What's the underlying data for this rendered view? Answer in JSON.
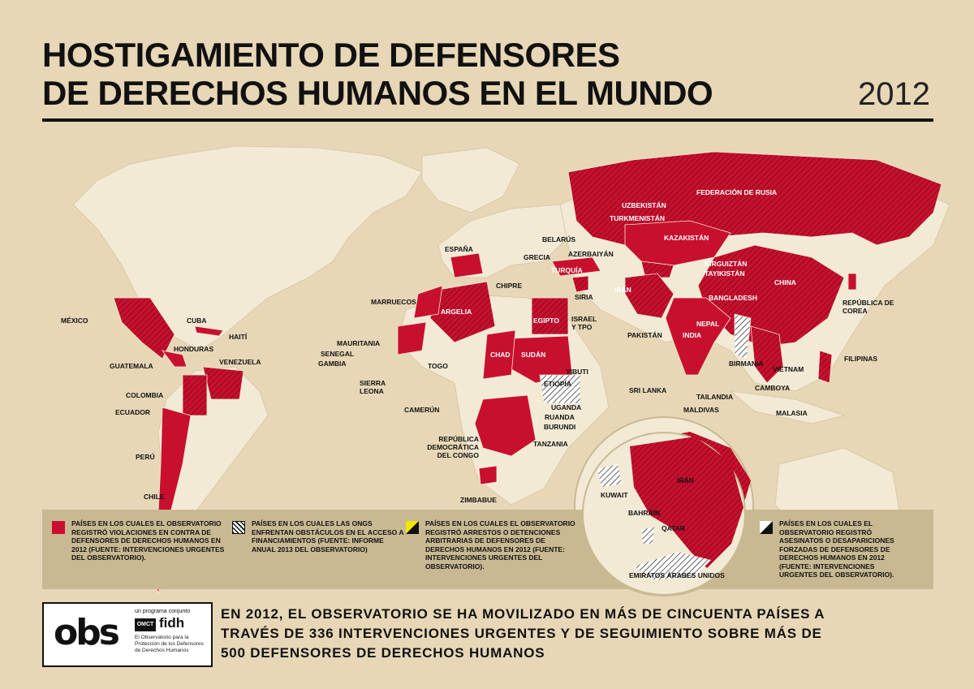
{
  "title_line1": "HOSTIGAMIENTO DE DEFENSORES",
  "title_line2": "DE DERECHOS HUMANOS EN EL MUNDO",
  "year": "2012",
  "colors": {
    "background": "#e7d7b6",
    "ocean": "#e7d7b6",
    "land": "#f3ead6",
    "highlight": "#c8102e",
    "hatch": "#111111",
    "marker_yellow": "#f2e600"
  },
  "country_labels": {
    "federacion_rusia": "FEDERACIÓN DE RUSIA",
    "uzbekistan": "UZBEKISTÁN",
    "turkmenistan": "TURKMENISTÁN",
    "kazakistan": "KAZAKISTÁN",
    "belarus": "BELARÚS",
    "azerbaiyan": "AZERBAIYÁN",
    "grecia": "GRECIA",
    "turquia": "TURQUÍA",
    "espana": "ESPAÑA",
    "kirguiztan": "KIRGUIZTÁN",
    "tayikistan": "TAYIKISTÁN",
    "china": "CHINA",
    "iran": "IRÁN",
    "chipre": "CHIPRE",
    "siria": "SIRIA",
    "bangladesh": "BANGLADESH",
    "republica_corea": "REPÚBLICA DE COREA",
    "marruecos": "MARRUECOS",
    "argelia": "ARGELIA",
    "israel": "ISRAEL Y TPO",
    "nepal": "NEPAL",
    "india": "INDIA",
    "pakistan": "PAKISTÁN",
    "egipto": "EGIPTO",
    "mexico": "MÉXICO",
    "cuba": "CUBA",
    "haiti": "HAITÍ",
    "mauritania": "MAURITANIA",
    "senegal": "SENEGAL",
    "gambia": "GAMBIA",
    "honduras": "HONDURAS",
    "guatemala": "GUATEMALA",
    "venezuela": "VENEZUELA",
    "chad": "CHAD",
    "sudan": "SUDÁN",
    "togo": "TOGO",
    "birmania": "BIRMANIA",
    "filipinas": "FILIPINAS",
    "vietnam": "VIETNAM",
    "yibuti": "YIBUTI",
    "sierra_leona": "SIERRA LEONA",
    "etiopia": "ETIOPÍA",
    "sri_lanka": "SRI LANKA",
    "camboya": "CAMBOYA",
    "tailandia": "TAILANDIA",
    "colombia": "COLOMBIA",
    "ecuador": "ECUADOR",
    "camerun": "CAMERÚN",
    "uganda": "UGANDA",
    "ruanda": "RUANDA",
    "burundi": "BURUNDI",
    "maldivas": "MALDIVAS",
    "malasia": "MALASIA",
    "rdc": "REPÚBLICA DEMOCRÁTICA DEL CONGO",
    "tanzania": "TANZANIA",
    "peru": "PERÚ",
    "chile": "CHILE",
    "zimbabue": "ZIMBABUE"
  },
  "inset_labels": {
    "iran": "IRÁN",
    "kuwait": "KUWAIT",
    "bahrain": "BAHRÁIN",
    "qatar": "QATAR",
    "emiratos": "EMIRATOS ÁRABES UNIDOS"
  },
  "legend": [
    {
      "icon": "red-square",
      "text": "PAÍSES EN LOS CUALES EL OBSERVATORIO REGISTRÓ VIOLACIONES EN CONTRA DE DEFENSORES DE DERECHOS HUMANOS EN 2012 (FUENTE: INTERVENCIONES URGENTES DEL OBSERVATORIO)."
    },
    {
      "icon": "hatched-square",
      "text": "PAÍSES EN LOS CUALES LAS ONGS ENFRENTAN OBSTÁCULOS EN EL ACCESO A FINANCIAMIENTOS (FUENTE: INFORME ANUAL 2013 DEL OBSERVATORIO)"
    },
    {
      "icon": "yellow-triangle",
      "text": "PAÍSES EN LOS CUALES EL OBSERVATORIO REGISTRÓ ARRESTOS O DETENCIONES ARBITRARIAS DE DEFENSORES DE DERECHOS HUMANOS EN 2012 (FUENTE: INTERVENCIONES URGENTES DEL OBSERVATORIO)."
    },
    {
      "icon": "black-triangle",
      "text": "PAÍSES EN LOS CUALES EL OBSERVATORIO REGISTRÓ ASESINATOS O DESAPARICIONES FORZADAS DE DEFENSORES DE DERECHOS HUMANOS EN 2012 (FUENTE: INTERVENCIONES URGENTES DEL OBSERVATORIO)."
    }
  ],
  "logo": {
    "obs": "obs",
    "program": "un programa conjunto",
    "omct": "OMCT",
    "fidh": "fidh",
    "description": "El Observatorio para la Protección de los Defensores de Derechos Humanos"
  },
  "footer": "EN 2012, EL OBSERVATORIO SE HA MOVILIZADO EN MÁS DE CINCUENTA PAÍSES A TRAVÉS DE 336 INTERVENCIONES URGENTES Y DE SEGUIMIENTO SOBRE MÁS DE 500 DEFENSORES DE DERECHOS HUMANOS"
}
